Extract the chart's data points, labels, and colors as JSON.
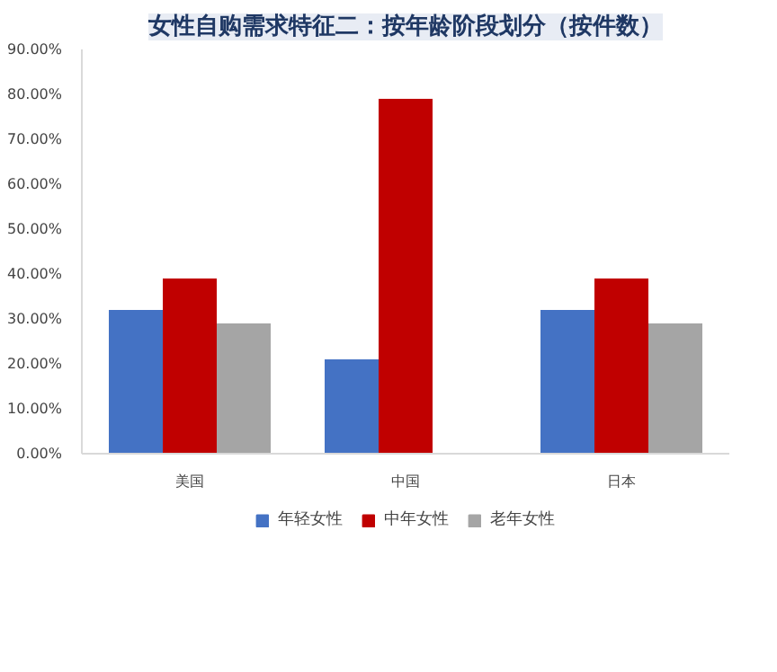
{
  "chart_data": {
    "type": "bar",
    "title": "女性自购需求特征二：按年龄阶段划分（按件数）",
    "categories": [
      "美国",
      "中国",
      "日本"
    ],
    "series": [
      {
        "name": "年轻女性",
        "color": "#4472c4",
        "values": [
          32,
          21,
          32
        ]
      },
      {
        "name": "中年女性",
        "color": "#c00000",
        "values": [
          39,
          79,
          39
        ]
      },
      {
        "name": "老年女性",
        "color": "#a5a5a5",
        "values": [
          29,
          null,
          29
        ]
      }
    ],
    "ylim": [
      0,
      90
    ],
    "yticks": [
      {
        "value": 0,
        "label": "0.00%"
      },
      {
        "value": 10,
        "label": "10.00%"
      },
      {
        "value": 20,
        "label": "20.00%"
      },
      {
        "value": 30,
        "label": "30.00%"
      },
      {
        "value": 40,
        "label": "40.00%"
      },
      {
        "value": 50,
        "label": "50.00%"
      },
      {
        "value": 60,
        "label": "60.00%"
      },
      {
        "value": 70,
        "label": "70.00%"
      },
      {
        "value": 80,
        "label": "80.00%"
      },
      {
        "value": 90,
        "label": "90.00%"
      }
    ],
    "grid": false,
    "legend": "bottom"
  }
}
